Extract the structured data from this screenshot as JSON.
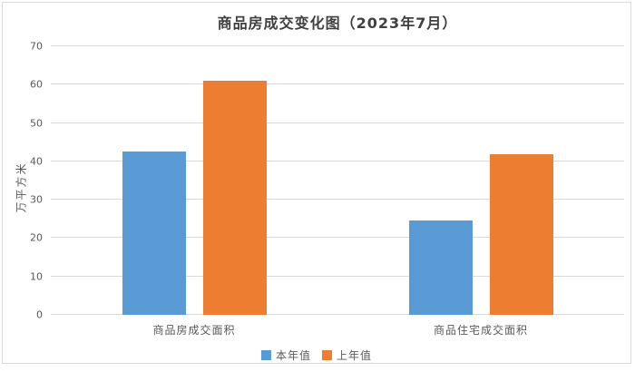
{
  "chart_data": {
    "type": "bar",
    "title": "商品房成交变化图（2023年7月）",
    "categories": [
      "商品房成交面积",
      "商品住宅成交面积"
    ],
    "series": [
      {
        "name": "本年值",
        "color": "#5b9bd5",
        "values": [
          42.5,
          24.5
        ]
      },
      {
        "name": "上年值",
        "color": "#ed7d31",
        "values": [
          61,
          41.8
        ]
      }
    ],
    "xlabel": "",
    "ylabel": "万平方米",
    "ylim": [
      0,
      70
    ],
    "ytick_step": 10,
    "grid": true,
    "legend_position": "bottom",
    "gridline_color": "#d9d9d9",
    "text_color": "#595959",
    "title_color": "#404040"
  }
}
